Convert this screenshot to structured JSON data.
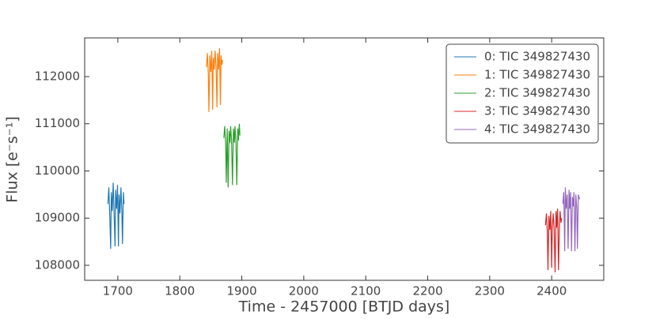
{
  "chart_data": {
    "type": "line",
    "xlabel": "Time - 2457000 [BTJD days]",
    "ylabel": "Flux [e⁻s⁻¹]",
    "xlim": [
      1646.5,
      2484
    ],
    "ylim": [
      107682,
      112820
    ],
    "xticks": [
      1700,
      1800,
      1900,
      2000,
      2100,
      2200,
      2300,
      2400
    ],
    "yticks": [
      108000,
      109000,
      110000,
      111000,
      112000
    ],
    "legend": "upper right",
    "series": [
      {
        "name": "0: TIC 349827430",
        "color": "#1f77b4",
        "x": [
          1684,
          1685.5,
          1687,
          1688.5,
          1689.5,
          1691,
          1692.5,
          1694,
          1695.5,
          1696.5,
          1698,
          1699.5,
          1701,
          1702,
          1703.5,
          1705,
          1706.5,
          1707.5,
          1709,
          1710
        ],
        "values": [
          109300,
          109650,
          109050,
          108350,
          109550,
          109150,
          109750,
          109100,
          108400,
          109600,
          109200,
          109700,
          108400,
          109500,
          109100,
          109650,
          109150,
          108450,
          109550,
          109300
        ]
      },
      {
        "name": "1: TIC 349827430",
        "color": "#ff7f0e",
        "x": [
          1843,
          1844.5,
          1846,
          1847,
          1848.5,
          1850,
          1851.5,
          1853,
          1854,
          1855.5,
          1857,
          1858.5,
          1860,
          1861,
          1862.5,
          1864,
          1865.5,
          1866.5,
          1868,
          1869
        ],
        "values": [
          112200,
          112500,
          112050,
          111250,
          112450,
          112100,
          112550,
          111300,
          112400,
          112150,
          112550,
          112200,
          111350,
          112500,
          112150,
          112600,
          111400,
          112450,
          112250,
          112350
        ]
      },
      {
        "name": "2: TIC 349827430",
        "color": "#2ca02c",
        "x": [
          1871,
          1872.5,
          1874,
          1875,
          1876.5,
          1878,
          1879.5,
          1881,
          1882,
          1883.5,
          1885,
          1886.5,
          1888,
          1889,
          1890.5,
          1892,
          1893.5,
          1894.5,
          1896,
          1897
        ],
        "values": [
          110700,
          110950,
          110550,
          109750,
          110900,
          109650,
          110850,
          110600,
          110950,
          110650,
          109700,
          110900,
          110600,
          110950,
          110650,
          109700,
          110900,
          110650,
          111000,
          110750
        ]
      },
      {
        "name": "3: TIC 349827430",
        "color": "#d62728",
        "x": [
          2390,
          2391.5,
          2393,
          2394,
          2395.5,
          2397,
          2398.5,
          2400,
          2401,
          2402.5,
          2404,
          2405.5,
          2407,
          2408,
          2409.5,
          2411,
          2412.5,
          2413.5,
          2415,
          2416
        ],
        "values": [
          108850,
          109100,
          108700,
          107900,
          109050,
          108750,
          109150,
          107950,
          108800,
          109100,
          108750,
          107850,
          109150,
          108800,
          109200,
          107900,
          108850,
          109150,
          108900,
          109000
        ]
      },
      {
        "name": "4: TIC 349827430",
        "color": "#9467bd",
        "x": [
          2418,
          2419.5,
          2421,
          2422,
          2423.5,
          2425,
          2426.5,
          2428,
          2429,
          2430.5,
          2432,
          2433.5,
          2435,
          2436,
          2437.5,
          2439,
          2440.5,
          2441.5,
          2443,
          2445
        ],
        "values": [
          109300,
          109550,
          108300,
          109650,
          109200,
          109500,
          108350,
          109600,
          109200,
          109550,
          108300,
          109450,
          109250,
          109550,
          108300,
          109500,
          109200,
          108350,
          109500,
          109400
        ]
      }
    ]
  }
}
